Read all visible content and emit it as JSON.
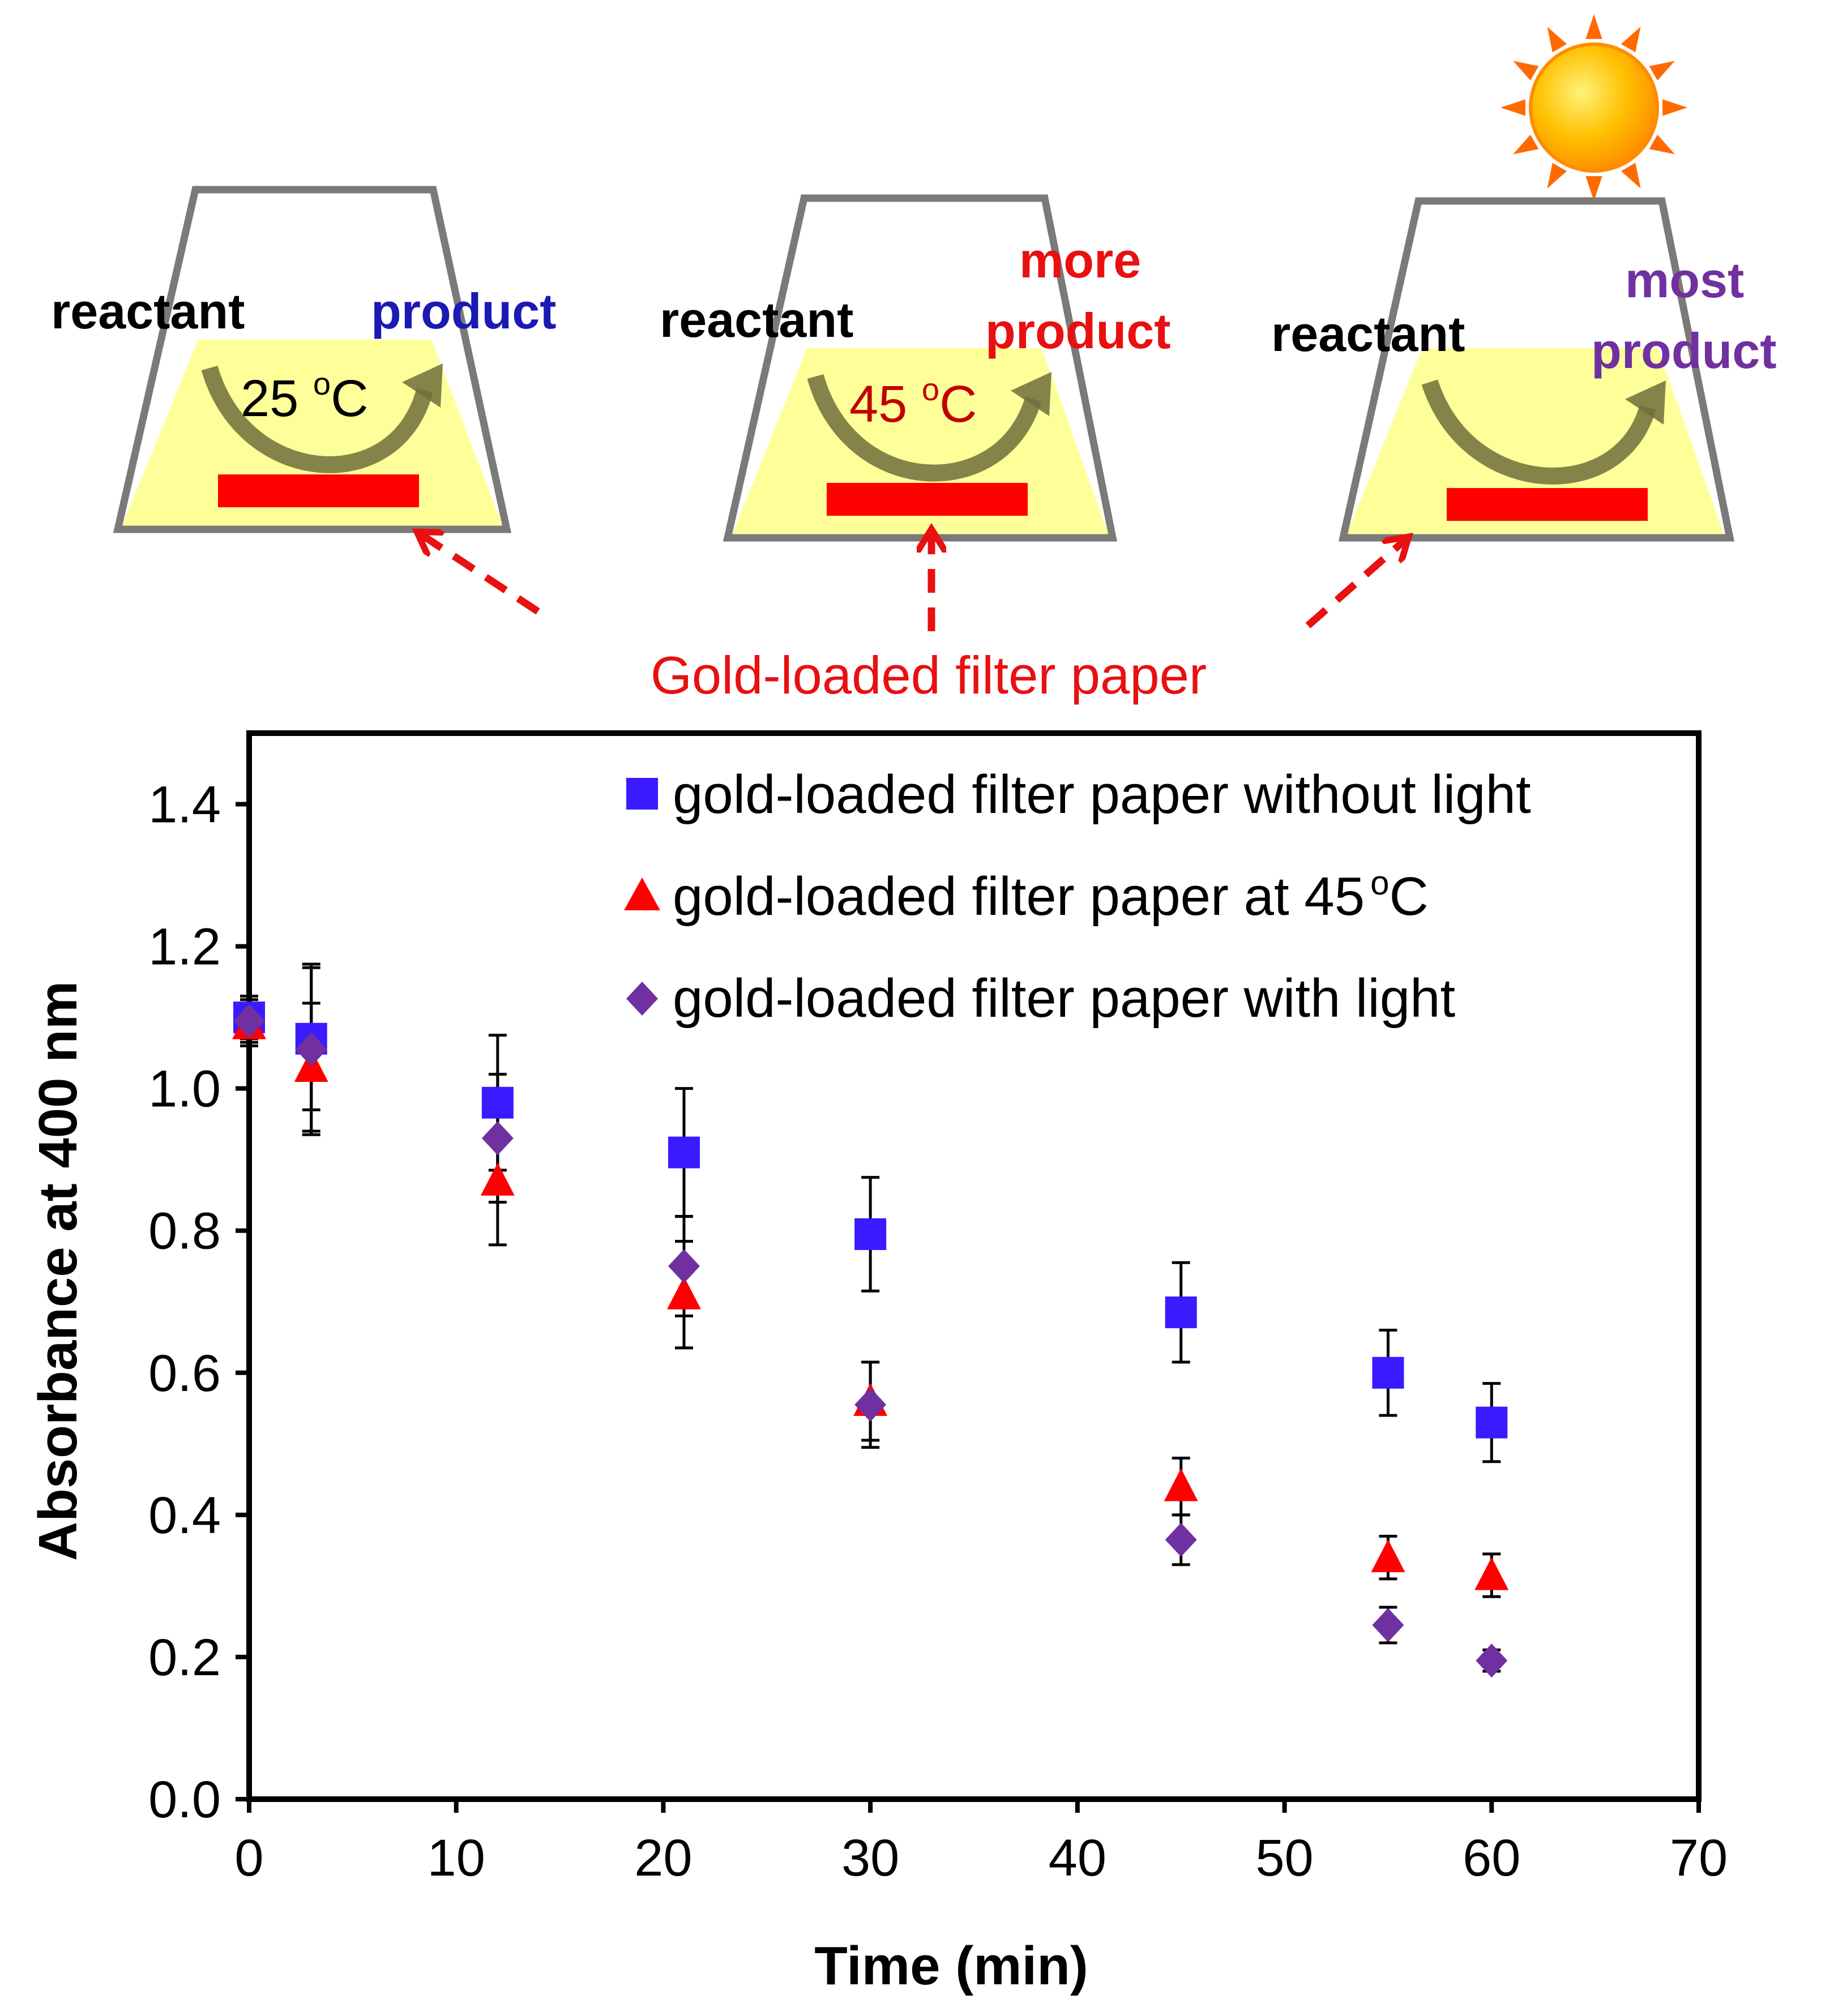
{
  "schematic": {
    "flasks": [
      {
        "reactant": "reactant",
        "product_lines": [
          "product"
        ],
        "product_color": "#1a1ab4",
        "temp_value": "25 ",
        "temp_unit": "o",
        "temp_c": "C",
        "temp_color": "#000000"
      },
      {
        "reactant": "reactant",
        "product_lines": [
          "more",
          "product"
        ],
        "product_color": "#e81010",
        "temp_value": "45 ",
        "temp_unit": "o",
        "temp_c": "C",
        "temp_color": "#c00000"
      },
      {
        "reactant": "reactant",
        "product_lines": [
          "most",
          "product"
        ],
        "product_color": "#7030a0",
        "temp_value": "",
        "temp_unit": "",
        "temp_c": "",
        "temp_color": "#000000"
      }
    ],
    "paper_label": "Gold-loaded filter paper",
    "colors": {
      "flask_outline": "#7a7a7a",
      "liquid": "#ffff99",
      "paper": "#ff0000",
      "arrow": "#6e6e3c",
      "callout": "#e81010"
    }
  },
  "chart_data": {
    "type": "scatter",
    "title": "",
    "xlabel": "Time (min)",
    "ylabel": "Absorbance at 400 nm",
    "xlim": [
      0,
      70
    ],
    "ylim": [
      0,
      1.5
    ],
    "x_ticks": [
      "0",
      "10",
      "20",
      "30",
      "40",
      "50",
      "60",
      "70"
    ],
    "y_ticks": [
      "0.0",
      "0.2",
      "0.4",
      "0.6",
      "0.8",
      "1.0",
      "1.2",
      "1.4"
    ],
    "grid": false,
    "legend_position": "top-right",
    "series": [
      {
        "name": "gold-loaded filter paper without light",
        "marker": "square",
        "color": "#3a1aff",
        "x": [
          0,
          3,
          12,
          21,
          30,
          45,
          55,
          60
        ],
        "y": [
          1.1,
          1.07,
          0.98,
          0.91,
          0.795,
          0.685,
          0.6,
          0.53
        ],
        "err": [
          0.03,
          0.1,
          0.095,
          0.09,
          0.08,
          0.07,
          0.06,
          0.055
        ]
      },
      {
        "name": "gold-loaded filter paper at 45°C",
        "marker": "triangle",
        "color": "#ff0000",
        "x": [
          0,
          3,
          12,
          21,
          30,
          45,
          55,
          60
        ],
        "y": [
          1.09,
          1.03,
          0.87,
          0.71,
          0.56,
          0.44,
          0.34,
          0.315
        ],
        "err": [
          0.03,
          0.09,
          0.09,
          0.075,
          0.055,
          0.04,
          0.03,
          0.03
        ]
      },
      {
        "name": "gold-loaded filter paper with light",
        "marker": "diamond",
        "color": "#7030a0",
        "x": [
          0,
          3,
          12,
          21,
          30,
          45,
          55,
          60
        ],
        "y": [
          1.095,
          1.055,
          0.93,
          0.75,
          0.555,
          0.365,
          0.245,
          0.195
        ],
        "err": [
          0.03,
          0.12,
          0.09,
          0.07,
          0.06,
          0.035,
          0.025,
          0.015
        ]
      }
    ],
    "legend_labels": {
      "s0": "gold-loaded filter paper without light",
      "s1_main": "gold-loaded filter paper at 45",
      "s1_sup": "o",
      "s1_unit": "C",
      "s2": "gold-loaded filter paper with light"
    }
  }
}
